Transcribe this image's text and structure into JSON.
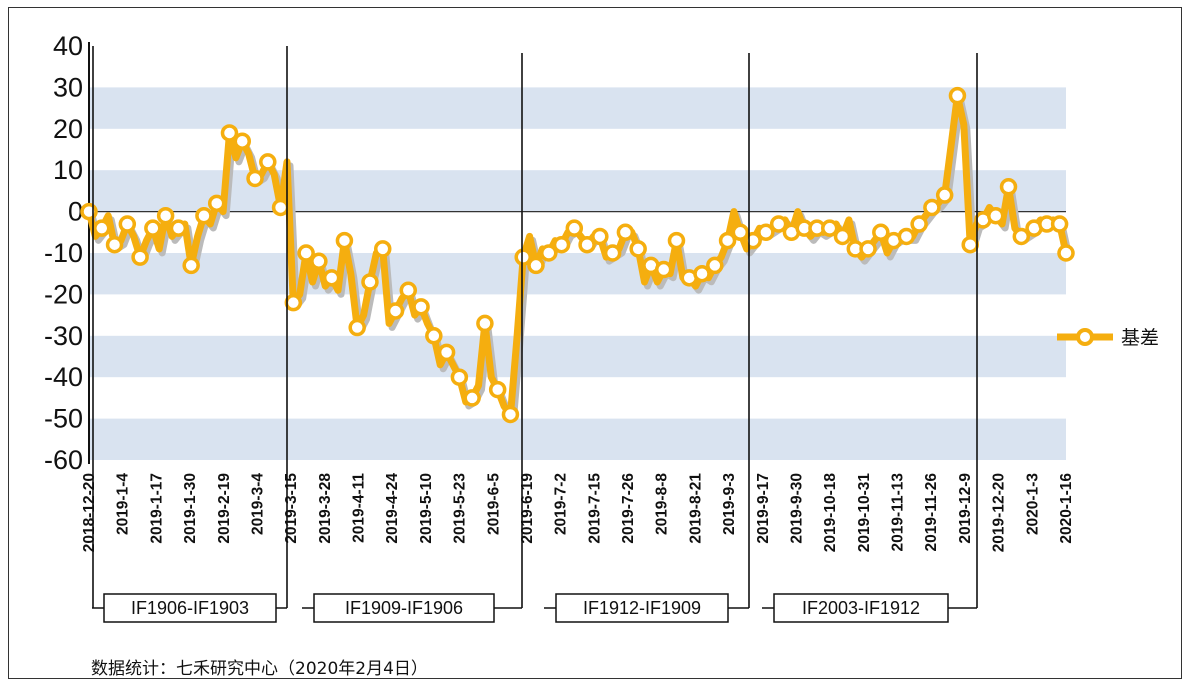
{
  "chart_data": {
    "type": "line",
    "title": "",
    "xlabel": "",
    "ylabel": "",
    "ylim": [
      -60,
      40
    ],
    "yticks": [
      "40",
      "30",
      "20",
      "10",
      "0",
      "-10",
      "-20",
      "-30",
      "-40",
      "-50",
      "-60"
    ],
    "grid": "alternating horizontal bands",
    "legend_position": "right",
    "colors": {
      "series": "#F5AE0F",
      "band": "#D9E3F0",
      "shadow": "#BBBBBB",
      "marker_fill": "#ffffff"
    },
    "x_ticks": [
      "2018-12-20",
      "2019-1-4",
      "2019-1-17",
      "2019-1-30",
      "2019-2-19",
      "2019-3-4",
      "2019-3-15",
      "2019-3-28",
      "2019-4-11",
      "2019-4-24",
      "2019-5-10",
      "2019-5-23",
      "2019-6-5",
      "2019-6-19",
      "2019-7-2",
      "2019-7-15",
      "2019-7-26",
      "2019-8-8",
      "2019-8-21",
      "2019-9-3",
      "2019-9-17",
      "2019-9-30",
      "2019-10-18",
      "2019-10-31",
      "2019-11-13",
      "2019-11-26",
      "2019-12-9",
      "2019-12-20",
      "2020-1-3",
      "2020-1-16"
    ],
    "series": [
      {
        "name": "基差",
        "values": [
          0,
          -6,
          -4,
          -1,
          -8,
          -7,
          -3,
          -6,
          -11,
          -7,
          -4,
          -9,
          -1,
          -6,
          -4,
          -3,
          -13,
          -6,
          -1,
          -3,
          2,
          0,
          19,
          13,
          17,
          14,
          8,
          9,
          12,
          9,
          1,
          12,
          -22,
          -20,
          -10,
          -17,
          -12,
          -18,
          -16,
          -19,
          -7,
          -15,
          -28,
          -25,
          -17,
          -10,
          -9,
          -27,
          -24,
          -21,
          -19,
          -25,
          -23,
          -27,
          -30,
          -37,
          -34,
          -37,
          -40,
          -46,
          -45,
          -42,
          -27,
          -40,
          -43,
          -47,
          -49,
          -31,
          -11,
          -6,
          -13,
          -9,
          -10,
          -7,
          -8,
          -5,
          -4,
          -6,
          -8,
          -6,
          -6,
          -11,
          -10,
          -9,
          -5,
          -5,
          -9,
          -17,
          -13,
          -17,
          -14,
          -15,
          -7,
          -16,
          -16,
          -18,
          -15,
          -16,
          -13,
          -11,
          -7,
          0,
          -5,
          -9,
          -7,
          -4,
          -5,
          -4,
          -3,
          -2,
          -5,
          0,
          -4,
          -6,
          -4,
          -5,
          -4,
          -3,
          -6,
          -2,
          -9,
          -11,
          -9,
          -7,
          -5,
          -10,
          -7,
          -6,
          -6,
          -6,
          -3,
          -1,
          1,
          2,
          4,
          16,
          28,
          21,
          -8,
          -3,
          -2,
          1,
          -1,
          -3,
          6,
          -4,
          -6,
          -5,
          -4,
          -2,
          -3,
          -2,
          -3,
          -10
        ]
      }
    ],
    "rollover_markers": [
      {
        "label": "IF1906-IF1903"
      },
      {
        "label": "IF1909-IF1906"
      },
      {
        "label": "IF1912-IF1909"
      },
      {
        "label": "IF2003-IF1912"
      }
    ]
  },
  "legend": {
    "label": "基差"
  },
  "source_note": "数据统计：七禾研究中心（2020年2月4日）"
}
